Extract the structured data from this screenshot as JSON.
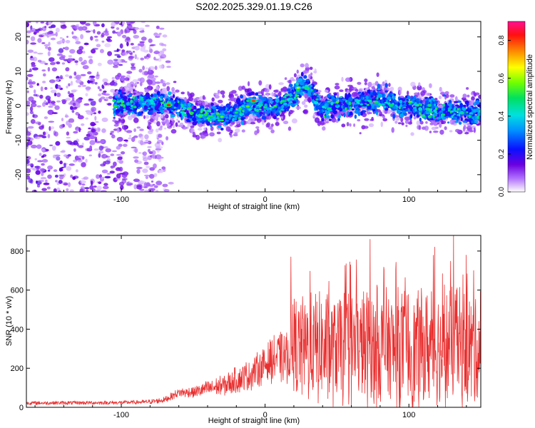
{
  "title": "S202.2025.329.01.19.C26",
  "chart_data": [
    {
      "type": "heatmap",
      "panel": "top",
      "xlabel": "Height of straight line (km)",
      "ylabel": "Frequency (Hz)",
      "xlim": [
        -166,
        150
      ],
      "ylim": [
        -25,
        24.5
      ],
      "xticks": [
        -100,
        0,
        100
      ],
      "yticks": [
        -20,
        -10,
        0,
        10,
        20
      ],
      "colorbar": {
        "label": "Normalized spectral amplitude",
        "range": [
          0,
          0.9
        ],
        "ticks": [
          0.0,
          0.2,
          0.4,
          0.6,
          0.8
        ]
      },
      "ridge": {
        "x": [
          -105,
          -90,
          -80,
          -70,
          -60,
          -50,
          -40,
          -30,
          -20,
          -10,
          0,
          10,
          20,
          25,
          30,
          35,
          40,
          50,
          60,
          70,
          80,
          90,
          100,
          110,
          120,
          130,
          140,
          150
        ],
        "freq": [
          0.5,
          0.5,
          0.5,
          0.5,
          -0.5,
          -2,
          -3,
          -3,
          -2,
          0.5,
          -0.5,
          0.5,
          3,
          5,
          6,
          2,
          -1,
          0.5,
          1,
          1,
          2,
          0.5,
          0,
          -1,
          -1.5,
          -1.5,
          -2,
          -2
        ]
      },
      "noise_region_x": [
        -166,
        -75
      ]
    },
    {
      "type": "line",
      "panel": "bottom",
      "xlabel": "Height of straight line (km)",
      "ylabel": "SNR (10 * v/v)",
      "xlim": [
        -166,
        150
      ],
      "ylim": [
        0,
        880
      ],
      "xticks": [
        -100,
        0,
        100
      ],
      "yticks": [
        0,
        200,
        400,
        600,
        800
      ],
      "color": "#e83030",
      "envelope": {
        "x": [
          -166,
          -100,
          -80,
          -70,
          -60,
          -50,
          -40,
          -30,
          -20,
          -10,
          0,
          5,
          10,
          18,
          20,
          40,
          60,
          80,
          100,
          120,
          140,
          150
        ],
        "mean": [
          22,
          24,
          28,
          38,
          75,
          78,
          95,
          110,
          140,
          170,
          220,
          240,
          260,
          275,
          300,
          300,
          300,
          300,
          300,
          300,
          300,
          300
        ],
        "spread": [
          10,
          10,
          12,
          15,
          25,
          30,
          45,
          55,
          70,
          85,
          100,
          120,
          140,
          160,
          280,
          300,
          310,
          320,
          320,
          320,
          320,
          320
        ]
      },
      "peaks": [
        {
          "x": 18,
          "y": 770
        },
        {
          "x": 73,
          "y": 860
        },
        {
          "x": 118,
          "y": 820
        },
        {
          "x": 131,
          "y": 880
        },
        {
          "x": 145,
          "y": 700
        }
      ]
    }
  ]
}
